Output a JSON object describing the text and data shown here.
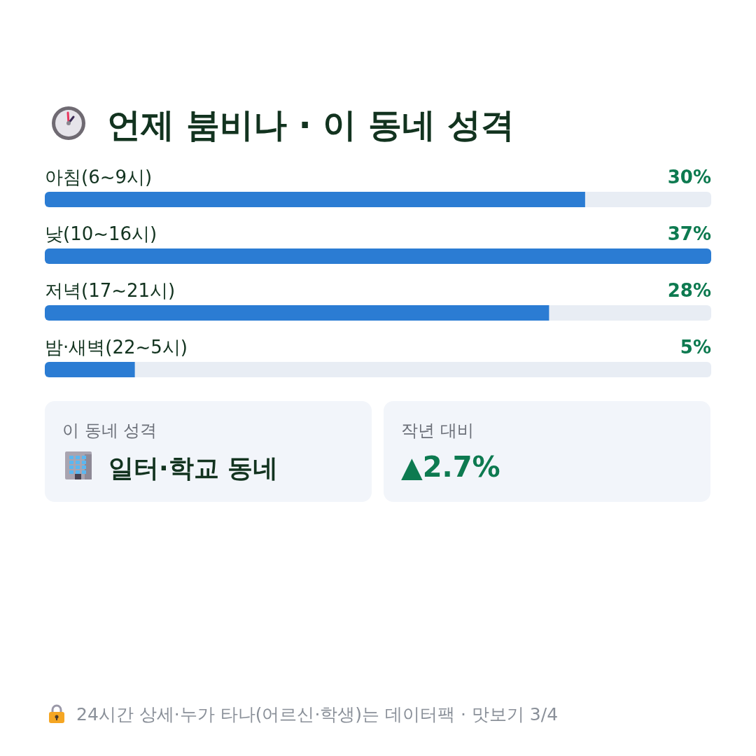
{
  "chart_data": [
    {
      "type": "bar",
      "orientation": "horizontal",
      "title": "언제 붐비나 · 이 동네 성격",
      "categories": [
        "아침(6~9시)",
        "낮(10~16시)",
        "저녁(17~21시)",
        "밤·새벽(22~5시)"
      ],
      "values": [
        30,
        37,
        28,
        5
      ],
      "color": "#2b7cd3",
      "value_labels": [
        "30%",
        "37%",
        "28%",
        "5%"
      ],
      "annotations": [
        "24시간 상세·누가 타나(어르신·학생)는 데이터팩 · 맛보기 3/4"
      ]
    },
    {
      "type": "other",
      "title": "이 동네 성격",
      "annotations": [
        "일터·학교 동네"
      ]
    },
    {
      "type": "other",
      "title": "작년 대비",
      "annotations": [
        "▲2.7%"
      ]
    }
  ]
}
